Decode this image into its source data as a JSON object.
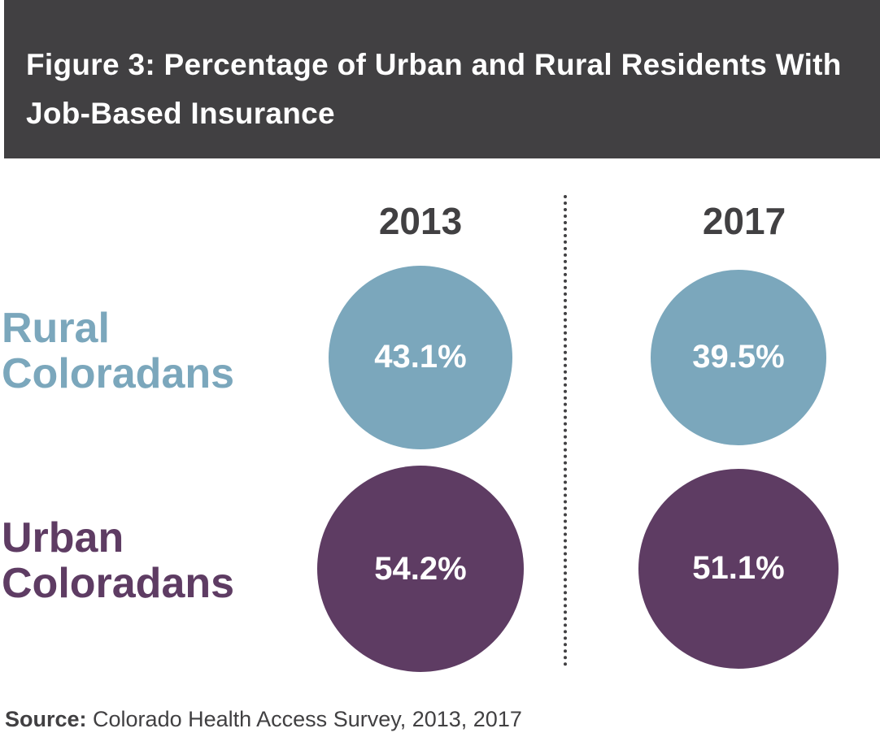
{
  "header": {
    "title": "Figure 3: Percentage of Urban and Rural Residents With Job-Based Insurance"
  },
  "chart_data": {
    "type": "bubble",
    "title": "Figure 3: Percentage of Urban and Rural Residents With Job-Based Insurance",
    "columns": [
      "2013",
      "2017"
    ],
    "series": [
      {
        "name_lines": [
          "Rural",
          "Coloradans"
        ],
        "color": "#7BA7BC",
        "values": [
          43.1,
          39.5
        ],
        "labels": [
          "43.1%",
          "39.5%"
        ]
      },
      {
        "name_lines": [
          "Urban",
          "Coloradans"
        ],
        "color": "#5E3C63",
        "values": [
          54.2,
          51.1
        ],
        "labels": [
          "54.2%",
          "51.1%"
        ]
      }
    ],
    "value_unit": "%",
    "encoding": "circle area proportional to value"
  },
  "source": {
    "label": "Source:",
    "text": " Colorado Health Access Survey, 2013, 2017"
  }
}
